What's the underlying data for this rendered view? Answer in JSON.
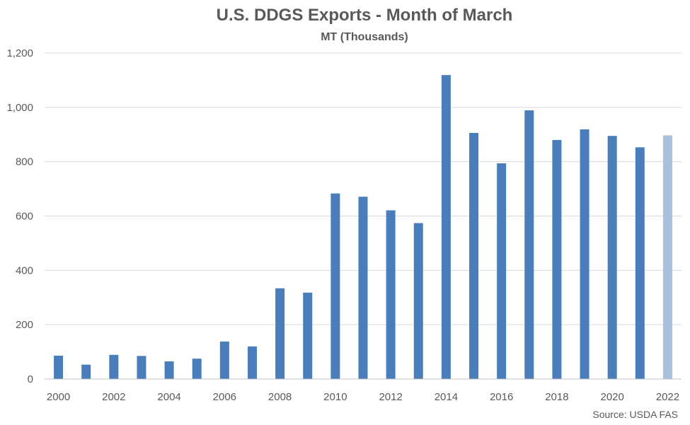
{
  "chart_data": {
    "type": "bar",
    "title": "U.S. DDGS Exports - Month of March",
    "subtitle": "MT (Thousands)",
    "xlabel": "",
    "ylabel": "",
    "ylim": [
      0,
      1200
    ],
    "yticks": [
      "0",
      "200",
      "400",
      "600",
      "800",
      "1,000",
      "1,200"
    ],
    "ytick_values": [
      0,
      200,
      400,
      600,
      800,
      1000,
      1200
    ],
    "grid": true,
    "legend": "none",
    "categories": [
      "2000",
      "2001",
      "2002",
      "2003",
      "2004",
      "2005",
      "2006",
      "2007",
      "2008",
      "2009",
      "2010",
      "2011",
      "2012",
      "2013",
      "2014",
      "2015",
      "2016",
      "2017",
      "2018",
      "2019",
      "2020",
      "2021",
      "2022"
    ],
    "xtick_labels": [
      "2000",
      "",
      "2002",
      "",
      "2004",
      "",
      "2006",
      "",
      "2008",
      "",
      "2010",
      "",
      "2012",
      "",
      "2014",
      "",
      "2016",
      "",
      "2018",
      "",
      "2020",
      "",
      "2022"
    ],
    "values": [
      86,
      53,
      89,
      85,
      65,
      75,
      138,
      120,
      334,
      318,
      683,
      671,
      621,
      574,
      1119,
      906,
      794,
      989,
      880,
      919,
      895,
      853,
      897
    ],
    "colors": {
      "bar": "#4A7EBB",
      "highlight_bar": "#A9C0DF",
      "grid": "#D9D9D9",
      "axis": "#BFBFBF",
      "text": "#595959"
    },
    "highlight_index": 22
  },
  "source": "Source: USDA FAS"
}
